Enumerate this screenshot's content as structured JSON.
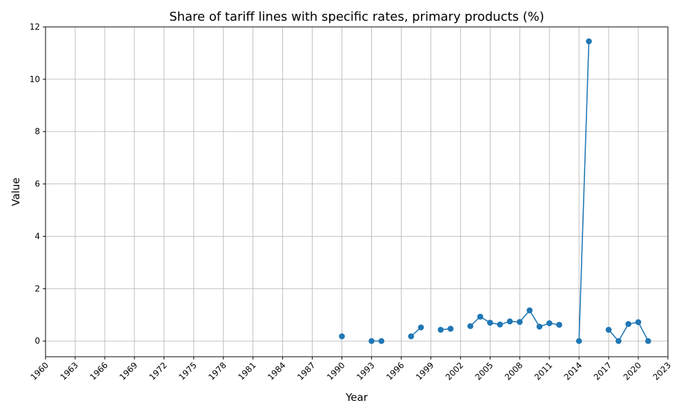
{
  "chart_data": {
    "type": "line",
    "title": "Share of tariff lines with specific rates, primary products (%)",
    "xlabel": "Year",
    "ylabel": "Value",
    "xlim": [
      1960,
      2023
    ],
    "ylim": [
      -0.6,
      12
    ],
    "xticks": [
      1960,
      1963,
      1966,
      1969,
      1972,
      1975,
      1978,
      1981,
      1984,
      1987,
      1990,
      1993,
      1996,
      1999,
      2002,
      2005,
      2008,
      2011,
      2014,
      2017,
      2020,
      2023
    ],
    "yticks": [
      0,
      2,
      4,
      6,
      8,
      10,
      12
    ],
    "grid": true,
    "color": "#1f77b4",
    "x": [
      1960,
      1961,
      1962,
      1963,
      1964,
      1965,
      1966,
      1967,
      1968,
      1969,
      1970,
      1971,
      1972,
      1973,
      1974,
      1975,
      1976,
      1977,
      1978,
      1979,
      1980,
      1981,
      1982,
      1983,
      1984,
      1985,
      1986,
      1987,
      1988,
      1989,
      1990,
      1991,
      1992,
      1993,
      1994,
      1995,
      1996,
      1997,
      1998,
      1999,
      2000,
      2001,
      2002,
      2003,
      2004,
      2005,
      2006,
      2007,
      2008,
      2009,
      2010,
      2011,
      2012,
      2013,
      2014,
      2015,
      2016,
      2017,
      2018,
      2019,
      2020,
      2021
    ],
    "values": [
      null,
      null,
      null,
      null,
      null,
      null,
      null,
      null,
      null,
      null,
      null,
      null,
      null,
      null,
      null,
      null,
      null,
      null,
      null,
      null,
      null,
      null,
      null,
      null,
      null,
      null,
      null,
      null,
      null,
      null,
      0.18,
      null,
      null,
      0.0,
      0.0,
      null,
      null,
      0.18,
      0.52,
      null,
      0.43,
      0.47,
      null,
      0.57,
      0.93,
      0.7,
      0.63,
      0.75,
      0.73,
      1.17,
      0.55,
      0.68,
      0.62,
      null,
      0.0,
      11.45,
      null,
      0.43,
      0.0,
      0.65,
      0.72,
      0.0
    ]
  }
}
